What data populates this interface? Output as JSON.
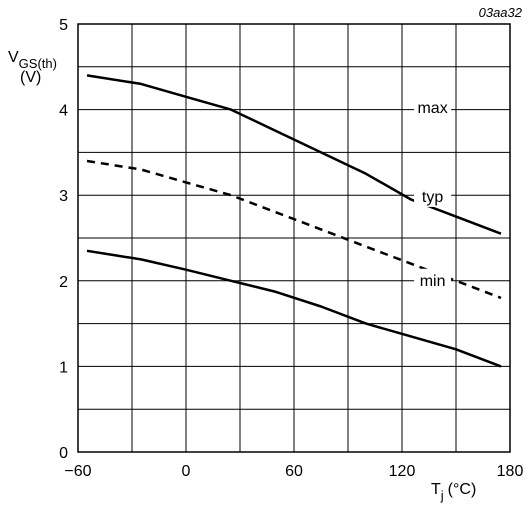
{
  "chart_data": {
    "type": "line",
    "figure_code": "03aa32",
    "ylabel": {
      "main": "V",
      "sub": "GS(th)",
      "unit": "(V)"
    },
    "xlabel": {
      "main": "T",
      "sub": "j",
      "unit": "(°C)"
    },
    "xlim": [
      -60,
      180
    ],
    "ylim": [
      0,
      5
    ],
    "xticks": [
      "−60",
      "0",
      "60",
      "120",
      "180"
    ],
    "xtick_values": [
      -60,
      0,
      60,
      120,
      180
    ],
    "yticks": [
      "0",
      "1",
      "2",
      "3",
      "4",
      "5"
    ],
    "ytick_values": [
      0,
      1,
      2,
      3,
      4,
      5
    ],
    "grid": true,
    "grid_x_step": 30,
    "grid_y_step": 0.5,
    "series": [
      {
        "name": "max",
        "style": "solid",
        "x": [
          -55,
          -25,
          0,
          25,
          50,
          75,
          100,
          125,
          150,
          175
        ],
        "y": [
          4.4,
          4.3,
          4.15,
          4.0,
          3.75,
          3.5,
          3.25,
          2.95,
          2.75,
          2.55
        ]
      },
      {
        "name": "typ",
        "style": "dashed",
        "x": [
          -55,
          -25,
          0,
          25,
          50,
          75,
          100,
          125,
          150,
          175
        ],
        "y": [
          3.4,
          3.3,
          3.15,
          3.0,
          2.8,
          2.6,
          2.4,
          2.2,
          2.0,
          1.8
        ]
      },
      {
        "name": "min",
        "style": "solid",
        "x": [
          -55,
          -25,
          0,
          25,
          50,
          75,
          100,
          125,
          150,
          175
        ],
        "y": [
          2.35,
          2.25,
          2.13,
          2.0,
          1.87,
          1.7,
          1.5,
          1.35,
          1.2,
          1.0
        ]
      }
    ],
    "series_labels": [
      {
        "text": "max",
        "x": 137,
        "y": 4.02
      },
      {
        "text": "typ",
        "x": 137,
        "y": 2.98
      },
      {
        "text": "min",
        "x": 137,
        "y": 2.0
      }
    ]
  }
}
